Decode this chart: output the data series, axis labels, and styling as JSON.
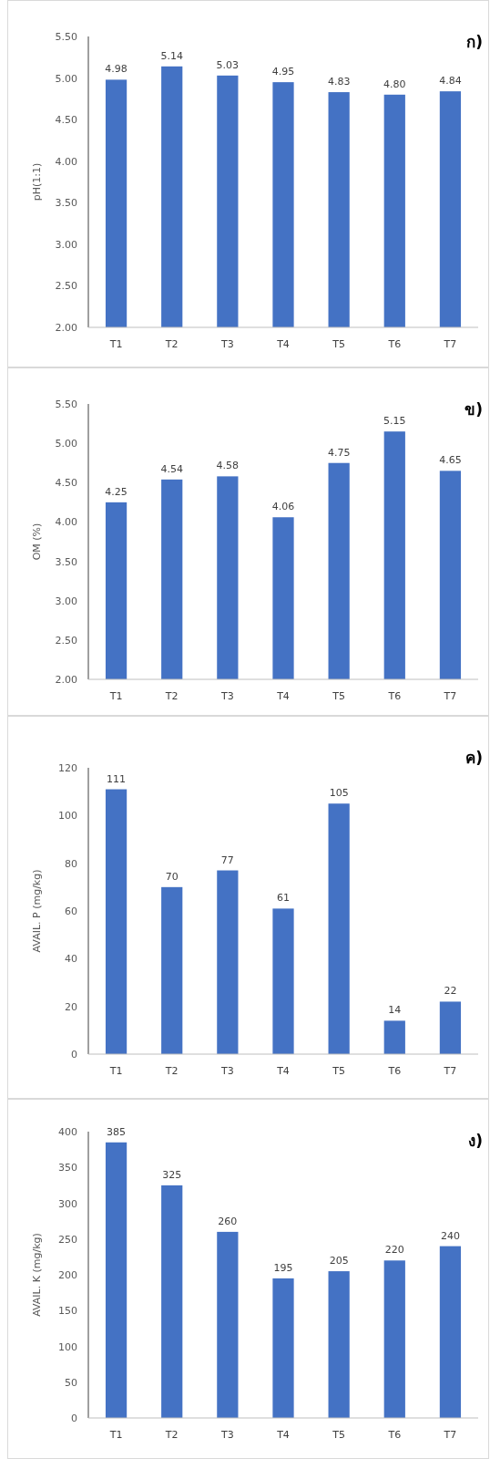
{
  "chart_data": [
    {
      "type": "bar",
      "categories": [
        "T1",
        "T2",
        "T3",
        "T4",
        "T5",
        "T6",
        "T7"
      ],
      "values": [
        4.98,
        5.14,
        5.03,
        4.95,
        4.83,
        4.8,
        4.84
      ],
      "value_labels": [
        "4.98",
        "5.14",
        "5.03",
        "4.95",
        "4.83",
        "4.80",
        "4.84"
      ],
      "color": "#4472c4",
      "ylabel": "pH(1:1)",
      "ylim": [
        2,
        5.5
      ],
      "yticks": [
        {
          "value": 2,
          "label": "2.00"
        },
        {
          "value": 2.5,
          "label": "2.50"
        },
        {
          "value": 3,
          "label": "3.00"
        },
        {
          "value": 3.5,
          "label": "3.50"
        },
        {
          "value": 4,
          "label": "4.00"
        },
        {
          "value": 4.5,
          "label": "4.50"
        },
        {
          "value": 5,
          "label": "5.00"
        },
        {
          "value": 5.5,
          "label": "5.50"
        }
      ],
      "annotations": [
        "ก)"
      ]
    },
    {
      "type": "bar",
      "categories": [
        "T1",
        "T2",
        "T3",
        "T4",
        "T5",
        "T6",
        "T7"
      ],
      "values": [
        4.25,
        4.54,
        4.58,
        4.06,
        4.75,
        5.15,
        4.65
      ],
      "value_labels": [
        "4.25",
        "4.54",
        "4.58",
        "4.06",
        "4.75",
        "5.15",
        "4.65"
      ],
      "color": "#4472c4",
      "ylabel": "OM (%)",
      "ylim": [
        2,
        5.5
      ],
      "yticks": [
        {
          "value": 2,
          "label": "2.00"
        },
        {
          "value": 2.5,
          "label": "2.50"
        },
        {
          "value": 3,
          "label": "3.00"
        },
        {
          "value": 3.5,
          "label": "3.50"
        },
        {
          "value": 4,
          "label": "4.00"
        },
        {
          "value": 4.5,
          "label": "4.50"
        },
        {
          "value": 5,
          "label": "5.00"
        },
        {
          "value": 5.5,
          "label": "5.50"
        }
      ],
      "annotations": [
        "ข)"
      ]
    },
    {
      "type": "bar",
      "categories": [
        "T1",
        "T2",
        "T3",
        "T4",
        "T5",
        "T6",
        "T7"
      ],
      "values": [
        111,
        70,
        77,
        61,
        105,
        14,
        22
      ],
      "value_labels": [
        "111",
        "70",
        "77",
        "61",
        "105",
        "14",
        "22"
      ],
      "color": "#4472c4",
      "ylabel": "AVAIL. P (mg/kg)",
      "ylim": [
        0,
        120
      ],
      "yticks": [
        0,
        20,
        40,
        60,
        80,
        100,
        120
      ],
      "annotations": [
        "ค)"
      ]
    },
    {
      "type": "bar",
      "categories": [
        "T1",
        "T2",
        "T3",
        "T4",
        "T5",
        "T6",
        "T7"
      ],
      "values": [
        385,
        325,
        260,
        195,
        205,
        220,
        240
      ],
      "value_labels": [
        "385",
        "325",
        "260",
        "195",
        "205",
        "220",
        "240"
      ],
      "color": "#4472c4",
      "ylabel": "AVAIL. K (mg/kg)",
      "ylim": [
        0,
        400
      ],
      "yticks": [
        0,
        50,
        100,
        150,
        200,
        250,
        300,
        350,
        400
      ],
      "annotations": [
        "ง)"
      ]
    }
  ]
}
